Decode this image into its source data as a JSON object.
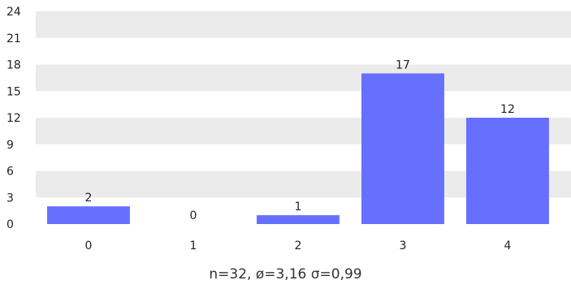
{
  "chart_data": {
    "type": "bar",
    "categories": [
      "0",
      "1",
      "2",
      "3",
      "4"
    ],
    "values": [
      2,
      0,
      1,
      17,
      12
    ],
    "ylim": [
      0,
      24
    ],
    "yticks": [
      0,
      3,
      6,
      9,
      12,
      15,
      18,
      21,
      24
    ],
    "grid": "alternating horizontal bands",
    "bar_color": "#6670ff",
    "band_color": "#ebebeb",
    "summary": "n=32, ø=3,16 σ=0,99"
  }
}
